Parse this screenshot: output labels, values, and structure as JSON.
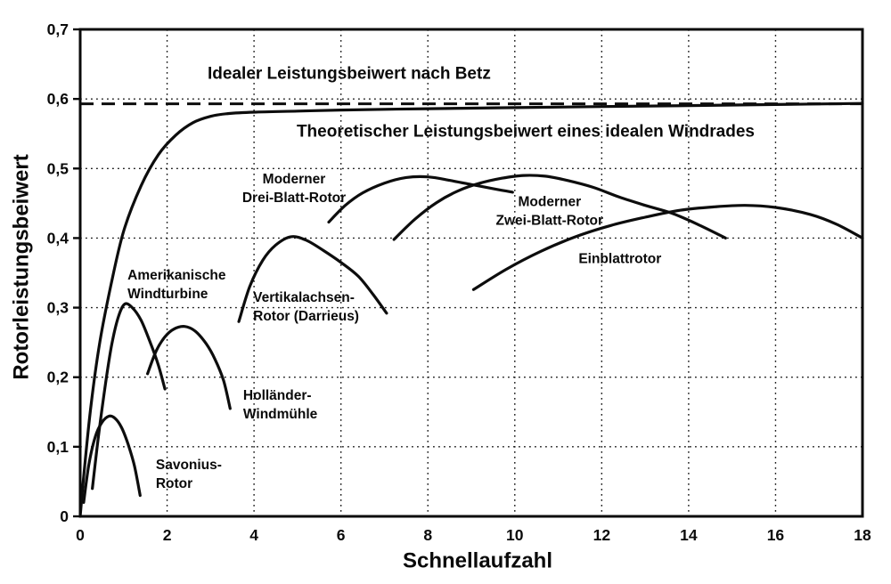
{
  "figure": {
    "background": "#ffffff",
    "ink_color": "#0a0a0a",
    "description": "Rotorleistungsbeiwert verschiedener Windrotoren über der Schnellaufzahl"
  },
  "chart_data": {
    "type": "line",
    "xlabel": "Schnellaufzahl",
    "ylabel": "Rotorleistungsbeiwert",
    "xlim": [
      0,
      18
    ],
    "ylim": [
      0,
      0.7
    ],
    "x_ticks": [
      0,
      2,
      4,
      6,
      8,
      10,
      12,
      14,
      16,
      18
    ],
    "y_ticks": [
      {
        "value": 0.0,
        "label": "0"
      },
      {
        "value": 0.1,
        "label": "0,1"
      },
      {
        "value": 0.2,
        "label": "0,2"
      },
      {
        "value": 0.3,
        "label": "0,3"
      },
      {
        "value": 0.4,
        "label": "0,4"
      },
      {
        "value": 0.5,
        "label": "0,5"
      },
      {
        "value": 0.6,
        "label": "0,6"
      },
      {
        "value": 0.7,
        "label": "0,7"
      }
    ],
    "grid": "dotted",
    "legend_position": "inline-annotations",
    "reference_lines": [
      {
        "name": "betz-limit",
        "value": 0.593,
        "style": "dashed"
      }
    ],
    "series": [
      {
        "name": "theoretical-ideal-rotor",
        "label": "Theoretischer Leistungsbeiwert eines idealen Windrades",
        "points": [
          [
            0,
            0
          ],
          [
            0.1,
            0.07
          ],
          [
            0.25,
            0.16
          ],
          [
            0.45,
            0.25
          ],
          [
            0.7,
            0.33
          ],
          [
            1.0,
            0.41
          ],
          [
            1.4,
            0.475
          ],
          [
            1.8,
            0.52
          ],
          [
            2.2,
            0.548
          ],
          [
            2.6,
            0.566
          ],
          [
            3.0,
            0.575
          ],
          [
            3.4,
            0.579
          ],
          [
            4.0,
            0.581
          ],
          [
            5.0,
            0.5825
          ],
          [
            6.0,
            0.584
          ],
          [
            8.0,
            0.586
          ],
          [
            10.0,
            0.5875
          ],
          [
            12.0,
            0.589
          ],
          [
            14.0,
            0.5905
          ],
          [
            16.0,
            0.592
          ],
          [
            18.0,
            0.5935
          ]
        ]
      },
      {
        "name": "savonius-rotor",
        "label": "Savonius-Rotor",
        "points": [
          [
            0.08,
            0.02
          ],
          [
            0.2,
            0.075
          ],
          [
            0.35,
            0.115
          ],
          [
            0.5,
            0.135
          ],
          [
            0.66,
            0.144
          ],
          [
            0.8,
            0.141
          ],
          [
            0.95,
            0.128
          ],
          [
            1.1,
            0.104
          ],
          [
            1.25,
            0.072
          ],
          [
            1.38,
            0.03
          ]
        ]
      },
      {
        "name": "amerikanische-windturbine",
        "label": "Amerikanische Windturbine",
        "points": [
          [
            0.28,
            0.04
          ],
          [
            0.42,
            0.115
          ],
          [
            0.57,
            0.185
          ],
          [
            0.72,
            0.245
          ],
          [
            0.87,
            0.285
          ],
          [
            1.02,
            0.305
          ],
          [
            1.2,
            0.3
          ],
          [
            1.4,
            0.282
          ],
          [
            1.6,
            0.252
          ],
          [
            1.8,
            0.217
          ],
          [
            1.95,
            0.183
          ]
        ]
      },
      {
        "name": "hollaender-windmuehle",
        "label": "Holländer-Windmühle",
        "points": [
          [
            1.55,
            0.205
          ],
          [
            1.75,
            0.238
          ],
          [
            1.95,
            0.258
          ],
          [
            2.15,
            0.269
          ],
          [
            2.4,
            0.273
          ],
          [
            2.65,
            0.266
          ],
          [
            2.9,
            0.248
          ],
          [
            3.1,
            0.226
          ],
          [
            3.3,
            0.195
          ],
          [
            3.45,
            0.155
          ]
        ]
      },
      {
        "name": "vertikalachsen-rotor-darrieus",
        "label": "Vertikalachsen-Rotor (Darrieus)",
        "points": [
          [
            3.65,
            0.28
          ],
          [
            3.9,
            0.33
          ],
          [
            4.2,
            0.368
          ],
          [
            4.5,
            0.39
          ],
          [
            4.85,
            0.402
          ],
          [
            5.2,
            0.397
          ],
          [
            5.6,
            0.382
          ],
          [
            6.0,
            0.365
          ],
          [
            6.4,
            0.345
          ],
          [
            6.75,
            0.318
          ],
          [
            7.05,
            0.292
          ]
        ]
      },
      {
        "name": "moderner-drei-blatt-rotor",
        "label": "Moderner Drei-Blatt-Rotor",
        "points": [
          [
            5.72,
            0.423
          ],
          [
            6.1,
            0.447
          ],
          [
            6.5,
            0.465
          ],
          [
            7.0,
            0.479
          ],
          [
            7.5,
            0.487
          ],
          [
            8.0,
            0.488
          ],
          [
            8.5,
            0.483
          ],
          [
            9.0,
            0.477
          ],
          [
            9.5,
            0.471
          ],
          [
            9.95,
            0.466
          ]
        ]
      },
      {
        "name": "moderner-zwei-blatt-rotor",
        "label": "Moderner Zwei-Blatt-Rotor",
        "points": [
          [
            7.22,
            0.398
          ],
          [
            7.7,
            0.427
          ],
          [
            8.2,
            0.451
          ],
          [
            8.7,
            0.468
          ],
          [
            9.2,
            0.479
          ],
          [
            9.7,
            0.486
          ],
          [
            10.2,
            0.49
          ],
          [
            10.7,
            0.489
          ],
          [
            11.2,
            0.483
          ],
          [
            11.8,
            0.473
          ],
          [
            12.4,
            0.459
          ],
          [
            13.0,
            0.447
          ],
          [
            13.6,
            0.436
          ],
          [
            14.2,
            0.42
          ],
          [
            14.85,
            0.4
          ]
        ]
      },
      {
        "name": "einblattrotor",
        "label": "Einblattrotor",
        "points": [
          [
            9.05,
            0.326
          ],
          [
            9.8,
            0.355
          ],
          [
            10.6,
            0.381
          ],
          [
            11.4,
            0.402
          ],
          [
            12.2,
            0.418
          ],
          [
            13.0,
            0.43
          ],
          [
            13.8,
            0.44
          ],
          [
            14.6,
            0.445
          ],
          [
            15.3,
            0.447
          ],
          [
            16.0,
            0.444
          ],
          [
            16.8,
            0.434
          ],
          [
            17.4,
            0.42
          ],
          [
            18.0,
            0.4
          ]
        ]
      }
    ],
    "annotations": [
      {
        "name": "betz-limit-label",
        "lines": [
          "Idealer Leistungsbeiwert nach Betz"
        ],
        "x": 6.19,
        "y": 0.636,
        "anchor": "middle",
        "size": "lg"
      },
      {
        "name": "theoretical-label",
        "lines": [
          "Theoretischer Leistungsbeiwert eines idealen Windrades"
        ],
        "x": 10.25,
        "y": 0.553,
        "anchor": "middle",
        "size": "lg"
      },
      {
        "name": "drei-blatt-label",
        "lines": [
          "Moderner",
          "Drei-Blatt-Rotor"
        ],
        "x": 4.92,
        "y": 0.471,
        "anchor": "middle",
        "size": "sm"
      },
      {
        "name": "zwei-blatt-label",
        "lines": [
          "Moderner",
          "Zwei-Blatt-Rotor"
        ],
        "x": 10.8,
        "y": 0.438,
        "anchor": "middle",
        "size": "sm"
      },
      {
        "name": "einblatt-label",
        "lines": [
          "Einblattrotor"
        ],
        "x": 12.42,
        "y": 0.37,
        "anchor": "middle",
        "size": "sm"
      },
      {
        "name": "amerikanische-label",
        "lines": [
          "Amerikanische",
          "Windturbine"
        ],
        "x": 1.09,
        "y": 0.333,
        "anchor": "start",
        "size": "sm"
      },
      {
        "name": "vertikalachsen-label",
        "lines": [
          "Vertikalachsen-",
          "Rotor (Darrieus)"
        ],
        "x": 3.98,
        "y": 0.301,
        "anchor": "start",
        "size": "sm"
      },
      {
        "name": "hollaender-label",
        "lines": [
          "Holländer-",
          "Windmühle"
        ],
        "x": 3.75,
        "y": 0.16,
        "anchor": "start",
        "size": "sm"
      },
      {
        "name": "savonius-label",
        "lines": [
          "Savonius-",
          "Rotor"
        ],
        "x": 1.74,
        "y": 0.06,
        "anchor": "start",
        "size": "sm"
      }
    ]
  }
}
